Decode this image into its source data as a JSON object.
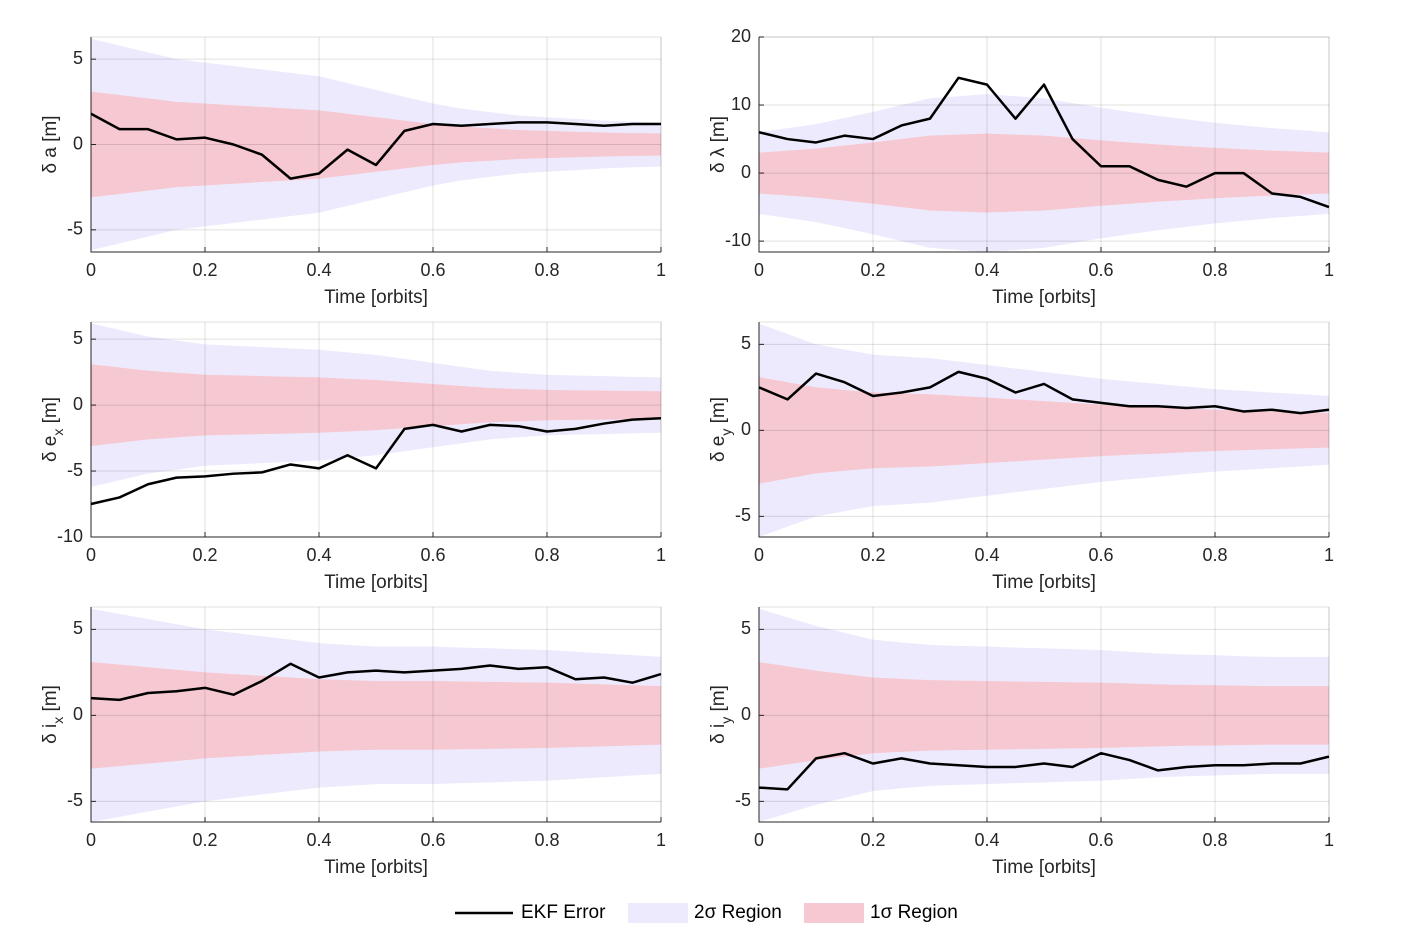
{
  "chart_data": [
    {
      "type": "line",
      "xlabel": "Time [orbits]",
      "ylabel": [
        "δ a [m]"
      ],
      "x": [
        0,
        0.05,
        0.1,
        0.15,
        0.2,
        0.25,
        0.3,
        0.35,
        0.4,
        0.45,
        0.5,
        0.55,
        0.6,
        0.65,
        0.7,
        0.75,
        0.8,
        0.85,
        0.9,
        0.95,
        1
      ],
      "xlim": [
        0,
        1
      ],
      "xticks": [
        0,
        0.2,
        0.4,
        0.6,
        0.8,
        1
      ],
      "ylim": [
        -6.3,
        6.3
      ],
      "yticks": [
        -5,
        0,
        5
      ],
      "grid": true,
      "series": [
        {
          "name": "EKF Error",
          "color": "#000000",
          "values": [
            1.8,
            0.9,
            0.9,
            0.3,
            0.4,
            0,
            -0.6,
            -2.0,
            -1.7,
            -0.3,
            -1.2,
            0.8,
            1.2,
            1.1,
            1.2,
            1.3,
            1.3,
            1.2,
            1.1,
            1.2,
            1.2
          ]
        },
        {
          "name": "2σ Region",
          "color": "#eeeafd",
          "upper": [
            6.2,
            5.8,
            5.4,
            5.0,
            4.8,
            4.6,
            4.4,
            4.2,
            4.0,
            3.6,
            3.2,
            2.8,
            2.4,
            2.1,
            1.9,
            1.7,
            1.6,
            1.5,
            1.4,
            1.34,
            1.3
          ],
          "lower": [
            -6.2,
            -5.8,
            -5.4,
            -5.0,
            -4.8,
            -4.6,
            -4.4,
            -4.2,
            -4.0,
            -3.6,
            -3.2,
            -2.8,
            -2.4,
            -2.1,
            -1.9,
            -1.7,
            -1.6,
            -1.5,
            -1.4,
            -1.34,
            -1.3
          ]
        },
        {
          "name": "1σ Region",
          "color": "#f6c8d1",
          "upper": [
            3.1,
            2.9,
            2.7,
            2.5,
            2.4,
            2.3,
            2.2,
            2.1,
            2.0,
            1.8,
            1.6,
            1.4,
            1.2,
            1.05,
            0.95,
            0.85,
            0.8,
            0.75,
            0.7,
            0.67,
            0.65
          ],
          "lower": [
            -3.1,
            -2.9,
            -2.7,
            -2.5,
            -2.4,
            -2.3,
            -2.2,
            -2.1,
            -2.0,
            -1.8,
            -1.6,
            -1.4,
            -1.2,
            -1.05,
            -0.95,
            -0.85,
            -0.8,
            -0.75,
            -0.7,
            -0.67,
            -0.65
          ]
        }
      ]
    },
    {
      "type": "line",
      "xlabel": "Time [orbits]",
      "ylabel": [
        "δ λ [m]"
      ],
      "x": [
        0,
        0.05,
        0.1,
        0.15,
        0.2,
        0.25,
        0.3,
        0.35,
        0.4,
        0.45,
        0.5,
        0.55,
        0.6,
        0.65,
        0.7,
        0.75,
        0.8,
        0.85,
        0.9,
        0.95,
        1
      ],
      "xlim": [
        0,
        1
      ],
      "xticks": [
        0,
        0.2,
        0.4,
        0.6,
        0.8,
        1
      ],
      "ylim": [
        -11.6,
        20
      ],
      "yticks": [
        -10,
        0,
        10,
        20
      ],
      "grid": true,
      "series": [
        {
          "color": "#000000",
          "values": [
            6,
            5,
            4.5,
            5.5,
            5,
            7,
            8,
            14,
            13,
            8,
            13,
            5,
            1,
            1,
            -1,
            -2,
            0,
            0,
            -3,
            -3.5,
            -5
          ]
        },
        {
          "color": "#eeeafd",
          "upper": [
            6,
            6.6,
            7.2,
            8.1,
            9,
            10,
            11,
            11.3,
            11.6,
            11.3,
            11,
            10.3,
            9.6,
            9,
            8.4,
            7.9,
            7.4,
            7,
            6.6,
            6.3,
            6
          ],
          "lower": [
            -6,
            -6.6,
            -7.2,
            -8.1,
            -9,
            -10,
            -11,
            -11.3,
            -11.6,
            -11.3,
            -11,
            -10.3,
            -9.6,
            -9,
            -8.4,
            -7.9,
            -7.4,
            -7,
            -6.6,
            -6.3,
            -6
          ]
        },
        {
          "color": "#f6c8d1",
          "upper": [
            3,
            3.3,
            3.6,
            4.05,
            4.5,
            5,
            5.5,
            5.65,
            5.8,
            5.65,
            5.5,
            5.15,
            4.8,
            4.5,
            4.2,
            3.95,
            3.7,
            3.5,
            3.3,
            3.15,
            3
          ],
          "lower": [
            -3,
            -3.3,
            -3.6,
            -4.05,
            -4.5,
            -5,
            -5.5,
            -5.65,
            -5.8,
            -5.65,
            -5.5,
            -5.15,
            -4.8,
            -4.5,
            -4.2,
            -3.95,
            -3.7,
            -3.5,
            -3.3,
            -3.15,
            -3
          ]
        }
      ]
    },
    {
      "type": "line",
      "xlabel": "Time [orbits]",
      "ylabel": [
        "δ e",
        "x",
        " [m]"
      ],
      "x": [
        0,
        0.05,
        0.1,
        0.15,
        0.2,
        0.25,
        0.3,
        0.35,
        0.4,
        0.45,
        0.5,
        0.55,
        0.6,
        0.65,
        0.7,
        0.75,
        0.8,
        0.85,
        0.9,
        0.95,
        1
      ],
      "xlim": [
        0,
        1
      ],
      "xticks": [
        0,
        0.2,
        0.4,
        0.6,
        0.8,
        1
      ],
      "ylim": [
        -10,
        6.3
      ],
      "yticks": [
        -10,
        -5,
        0,
        5
      ],
      "grid": true,
      "series": [
        {
          "color": "#000000",
          "values": [
            -7.5,
            -7,
            -6,
            -5.5,
            -5.4,
            -5.2,
            -5.1,
            -4.5,
            -4.8,
            -3.8,
            -4.8,
            -1.8,
            -1.5,
            -2,
            -1.5,
            -1.6,
            -2,
            -1.8,
            -1.4,
            -1.1,
            -1
          ]
        },
        {
          "color": "#eeeafd",
          "upper": [
            6.2,
            5.7,
            5.2,
            4.9,
            4.6,
            4.5,
            4.4,
            4.3,
            4.2,
            4,
            3.8,
            3.5,
            3.2,
            2.9,
            2.6,
            2.44,
            2.3,
            2.24,
            2.2,
            2.14,
            2.1
          ],
          "lower": [
            -6.2,
            -5.7,
            -5.2,
            -4.9,
            -4.6,
            -4.5,
            -4.4,
            -4.3,
            -4.2,
            -4,
            -3.8,
            -3.5,
            -3.2,
            -2.9,
            -2.6,
            -2.44,
            -2.3,
            -2.24,
            -2.2,
            -2.14,
            -2.1
          ]
        },
        {
          "color": "#f6c8d1",
          "upper": [
            3.1,
            2.85,
            2.6,
            2.45,
            2.3,
            2.25,
            2.2,
            2.15,
            2.1,
            2,
            1.9,
            1.75,
            1.6,
            1.45,
            1.3,
            1.22,
            1.15,
            1.12,
            1.1,
            1.07,
            1.05
          ],
          "lower": [
            -3.1,
            -2.85,
            -2.6,
            -2.45,
            -2.3,
            -2.25,
            -2.2,
            -2.15,
            -2.1,
            -2,
            -1.9,
            -1.75,
            -1.6,
            -1.45,
            -1.3,
            -1.22,
            -1.15,
            -1.12,
            -1.1,
            -1.07,
            -1.05
          ]
        }
      ]
    },
    {
      "type": "line",
      "xlabel": "Time [orbits]",
      "ylabel": [
        "δ e",
        "y",
        " [m]"
      ],
      "x": [
        0,
        0.05,
        0.1,
        0.15,
        0.2,
        0.25,
        0.3,
        0.35,
        0.4,
        0.45,
        0.5,
        0.55,
        0.6,
        0.65,
        0.7,
        0.75,
        0.8,
        0.85,
        0.9,
        0.95,
        1
      ],
      "xlim": [
        0,
        1
      ],
      "xticks": [
        0,
        0.2,
        0.4,
        0.6,
        0.8,
        1
      ],
      "ylim": [
        -6.2,
        6.3
      ],
      "yticks": [
        -5,
        0,
        5
      ],
      "grid": true,
      "series": [
        {
          "color": "#000000",
          "values": [
            2.5,
            1.8,
            3.3,
            2.8,
            2,
            2.2,
            2.5,
            3.4,
            3,
            2.2,
            2.7,
            1.8,
            1.6,
            1.4,
            1.4,
            1.3,
            1.4,
            1.1,
            1.2,
            1,
            1.2
          ]
        },
        {
          "color": "#eeeafd",
          "upper": [
            6.2,
            5.6,
            5,
            4.7,
            4.4,
            4.3,
            4.2,
            4,
            3.8,
            3.6,
            3.4,
            3.2,
            3,
            2.84,
            2.7,
            2.54,
            2.4,
            2.3,
            2.2,
            2.1,
            2
          ],
          "lower": [
            -6.2,
            -5.6,
            -5,
            -4.7,
            -4.4,
            -4.3,
            -4.2,
            -4,
            -3.8,
            -3.6,
            -3.4,
            -3.2,
            -3,
            -2.84,
            -2.7,
            -2.54,
            -2.4,
            -2.3,
            -2.2,
            -2.1,
            -2
          ]
        },
        {
          "color": "#f6c8d1",
          "upper": [
            3.1,
            2.8,
            2.5,
            2.35,
            2.2,
            2.15,
            2.1,
            2,
            1.9,
            1.8,
            1.7,
            1.6,
            1.5,
            1.42,
            1.35,
            1.27,
            1.2,
            1.15,
            1.1,
            1.05,
            1
          ],
          "lower": [
            -3.1,
            -2.8,
            -2.5,
            -2.35,
            -2.2,
            -2.15,
            -2.1,
            -2,
            -1.9,
            -1.8,
            -1.7,
            -1.6,
            -1.5,
            -1.42,
            -1.35,
            -1.27,
            -1.2,
            -1.15,
            -1.1,
            -1.05,
            -1
          ]
        }
      ]
    },
    {
      "type": "line",
      "xlabel": "Time [orbits]",
      "ylabel": [
        "δ i",
        "x",
        " [m]"
      ],
      "x": [
        0,
        0.05,
        0.1,
        0.15,
        0.2,
        0.25,
        0.3,
        0.35,
        0.4,
        0.45,
        0.5,
        0.55,
        0.6,
        0.65,
        0.7,
        0.75,
        0.8,
        0.85,
        0.9,
        0.95,
        1
      ],
      "xlim": [
        0,
        1
      ],
      "xticks": [
        0,
        0.2,
        0.4,
        0.6,
        0.8,
        1
      ],
      "ylim": [
        -6.2,
        6.3
      ],
      "yticks": [
        -5,
        0,
        5
      ],
      "grid": true,
      "series": [
        {
          "color": "#000000",
          "values": [
            1,
            0.9,
            1.3,
            1.4,
            1.6,
            1.2,
            2,
            3,
            2.2,
            2.5,
            2.6,
            2.5,
            2.6,
            2.7,
            2.9,
            2.7,
            2.8,
            2.1,
            2.2,
            1.9,
            2.4
          ]
        },
        {
          "color": "#eeeafd",
          "upper": [
            6.2,
            5.9,
            5.6,
            5.3,
            5,
            4.8,
            4.6,
            4.4,
            4.2,
            4.1,
            4,
            4,
            4,
            3.94,
            3.9,
            3.84,
            3.8,
            3.7,
            3.6,
            3.5,
            3.4
          ],
          "lower": [
            -6.2,
            -5.9,
            -5.6,
            -5.3,
            -5,
            -4.8,
            -4.6,
            -4.4,
            -4.2,
            -4.1,
            -4,
            -4,
            -4,
            -3.94,
            -3.9,
            -3.84,
            -3.8,
            -3.7,
            -3.6,
            -3.5,
            -3.4
          ]
        },
        {
          "color": "#f6c8d1",
          "upper": [
            3.1,
            2.95,
            2.8,
            2.65,
            2.5,
            2.4,
            2.3,
            2.2,
            2.1,
            2.05,
            2,
            2,
            2,
            1.97,
            1.95,
            1.92,
            1.9,
            1.85,
            1.8,
            1.75,
            1.7
          ],
          "lower": [
            -3.1,
            -2.95,
            -2.8,
            -2.65,
            -2.5,
            -2.4,
            -2.3,
            -2.2,
            -2.1,
            -2.05,
            -2,
            -2,
            -2,
            -1.97,
            -1.95,
            -1.92,
            -1.9,
            -1.85,
            -1.8,
            -1.75,
            -1.7
          ]
        }
      ]
    },
    {
      "type": "line",
      "xlabel": "Time [orbits]",
      "ylabel": [
        "δ i",
        "y",
        " [m]"
      ],
      "x": [
        0,
        0.05,
        0.1,
        0.15,
        0.2,
        0.25,
        0.3,
        0.35,
        0.4,
        0.45,
        0.5,
        0.55,
        0.6,
        0.65,
        0.7,
        0.75,
        0.8,
        0.85,
        0.9,
        0.95,
        1
      ],
      "xlim": [
        0,
        1
      ],
      "xticks": [
        0,
        0.2,
        0.4,
        0.6,
        0.8,
        1
      ],
      "ylim": [
        -6.2,
        6.3
      ],
      "yticks": [
        -5,
        0,
        5
      ],
      "grid": true,
      "series": [
        {
          "color": "#000000",
          "values": [
            -4.2,
            -4.3,
            -2.5,
            -2.2,
            -2.8,
            -2.5,
            -2.8,
            -2.9,
            -3,
            -3,
            -2.8,
            -3,
            -2.2,
            -2.6,
            -3.2,
            -3,
            -2.9,
            -2.9,
            -2.8,
            -2.8,
            -2.4
          ]
        },
        {
          "color": "#eeeafd",
          "upper": [
            6.2,
            5.7,
            5.2,
            4.8,
            4.4,
            4.24,
            4.1,
            4.04,
            4,
            3.94,
            3.9,
            3.84,
            3.8,
            3.7,
            3.6,
            3.54,
            3.5,
            3.44,
            3.4,
            3.4,
            3.4
          ],
          "lower": [
            -6.2,
            -5.7,
            -5.2,
            -4.8,
            -4.4,
            -4.24,
            -4.1,
            -4.04,
            -4,
            -3.94,
            -3.9,
            -3.84,
            -3.8,
            -3.7,
            -3.6,
            -3.54,
            -3.5,
            -3.44,
            -3.4,
            -3.4,
            -3.4
          ]
        },
        {
          "color": "#f6c8d1",
          "upper": [
            3.1,
            2.85,
            2.6,
            2.4,
            2.2,
            2.12,
            2.05,
            2.02,
            2,
            1.97,
            1.95,
            1.92,
            1.9,
            1.85,
            1.8,
            1.77,
            1.75,
            1.72,
            1.7,
            1.7,
            1.7
          ],
          "lower": [
            -3.1,
            -2.85,
            -2.6,
            -2.4,
            -2.2,
            -2.12,
            -2.05,
            -2.02,
            -2,
            -1.97,
            -1.95,
            -1.92,
            -1.9,
            -1.85,
            -1.8,
            -1.77,
            -1.75,
            -1.72,
            -1.7,
            -1.7,
            -1.7
          ]
        }
      ]
    }
  ]
}
